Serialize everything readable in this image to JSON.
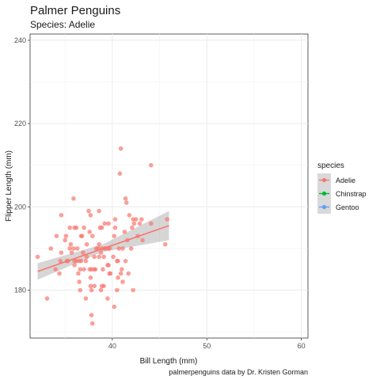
{
  "chart_data": {
    "type": "scatter",
    "title": "Palmer Penguins",
    "subtitle": "Species: Adelie",
    "xlabel": "Bill Length (mm)",
    "ylabel": "Flipper Length (mm)",
    "caption": "palmerpenguins data by Dr. Kristen Gorman",
    "xlim": [
      31.3,
      60.7
    ],
    "ylim": [
      168.5,
      241.5
    ],
    "x_ticks": [
      "40",
      "50",
      "60"
    ],
    "y_ticks": [
      "180",
      "200",
      "220",
      "240"
    ],
    "grid": true,
    "legend": {
      "title": "species",
      "placement": "right",
      "entries": [
        {
          "label": "Adelie",
          "color": "#F8766D"
        },
        {
          "label": "Chinstrap",
          "color": "#00BA38"
        },
        {
          "label": "Gentoo",
          "color": "#619CFF"
        }
      ]
    },
    "trend_line": {
      "x": [
        32.1,
        46.0
      ],
      "y": [
        184.5,
        195.5
      ],
      "band": [
        [
          32.1,
          182.5,
          186.5
        ],
        [
          39.0,
          189.2,
          191.0
        ],
        [
          46.0,
          192.0,
          199.0
        ]
      ]
    },
    "series": [
      {
        "name": "Adelie",
        "color": "#F8766D",
        "points": [
          [
            32.1,
            188
          ],
          [
            33.1,
            178
          ],
          [
            33.5,
            190
          ],
          [
            34.0,
            185
          ],
          [
            34.1,
            193
          ],
          [
            34.4,
            184
          ],
          [
            34.5,
            187
          ],
          [
            34.6,
            189
          ],
          [
            34.6,
            198
          ],
          [
            35.0,
            192
          ],
          [
            35.1,
            193
          ],
          [
            35.2,
            187
          ],
          [
            35.3,
            187
          ],
          [
            35.5,
            195
          ],
          [
            35.5,
            190
          ],
          [
            35.6,
            191
          ],
          [
            35.7,
            189
          ],
          [
            35.9,
            190
          ],
          [
            35.9,
            202
          ],
          [
            36.0,
            195
          ],
          [
            36.0,
            186
          ],
          [
            36.0,
            187
          ],
          [
            36.2,
            187
          ],
          [
            36.2,
            195
          ],
          [
            36.3,
            190
          ],
          [
            36.4,
            184
          ],
          [
            36.5,
            182
          ],
          [
            36.5,
            187
          ],
          [
            36.6,
            185
          ],
          [
            36.6,
            180
          ],
          [
            36.7,
            187
          ],
          [
            36.7,
            193
          ],
          [
            36.8,
            193
          ],
          [
            36.9,
            189
          ],
          [
            37.0,
            185
          ],
          [
            37.0,
            195
          ],
          [
            37.2,
            178
          ],
          [
            37.2,
            187
          ],
          [
            37.3,
            191
          ],
          [
            37.3,
            188
          ],
          [
            37.5,
            199
          ],
          [
            37.6,
            194
          ],
          [
            37.6,
            185
          ],
          [
            37.7,
            181
          ],
          [
            37.7,
            198
          ],
          [
            37.7,
            183
          ],
          [
            37.8,
            174
          ],
          [
            37.8,
            180
          ],
          [
            37.8,
            185
          ],
          [
            37.9,
            172
          ],
          [
            37.9,
            193
          ],
          [
            38.1,
            181
          ],
          [
            38.1,
            185
          ],
          [
            38.1,
            188
          ],
          [
            38.2,
            185
          ],
          [
            38.3,
            190
          ],
          [
            38.5,
            190
          ],
          [
            38.6,
            188
          ],
          [
            38.6,
            191
          ],
          [
            38.6,
            199
          ],
          [
            38.7,
            195
          ],
          [
            38.8,
            180
          ],
          [
            38.8,
            189
          ],
          [
            38.9,
            181
          ],
          [
            38.9,
            190
          ],
          [
            38.9,
            195
          ],
          [
            39.0,
            185
          ],
          [
            39.1,
            181
          ],
          [
            39.1,
            188
          ],
          [
            39.2,
            190
          ],
          [
            39.2,
            196
          ],
          [
            39.3,
            190
          ],
          [
            39.5,
            186
          ],
          [
            39.5,
            178
          ],
          [
            39.6,
            186
          ],
          [
            39.6,
            190
          ],
          [
            39.6,
            196
          ],
          [
            39.7,
            190
          ],
          [
            39.7,
            184
          ],
          [
            39.8,
            184
          ],
          [
            40.1,
            188
          ],
          [
            40.2,
            176
          ],
          [
            40.2,
            193
          ],
          [
            40.3,
            195
          ],
          [
            40.3,
            197
          ],
          [
            40.5,
            180
          ],
          [
            40.5,
            187
          ],
          [
            40.6,
            183
          ],
          [
            40.6,
            187
          ],
          [
            40.7,
            190
          ],
          [
            40.8,
            208
          ],
          [
            40.9,
            184
          ],
          [
            40.9,
            214
          ],
          [
            41.0,
            185
          ],
          [
            41.1,
            182
          ],
          [
            41.1,
            190
          ],
          [
            41.3,
            194
          ],
          [
            41.4,
            187
          ],
          [
            41.4,
            202
          ],
          [
            41.5,
            201
          ],
          [
            41.6,
            192
          ],
          [
            41.7,
            184
          ],
          [
            41.8,
            198
          ],
          [
            42.0,
            190
          ],
          [
            42.1,
            195
          ],
          [
            42.2,
            180
          ],
          [
            42.2,
            197
          ],
          [
            42.3,
            196
          ],
          [
            42.5,
            197
          ],
          [
            42.7,
            193
          ],
          [
            42.9,
            196
          ],
          [
            43.1,
            197
          ],
          [
            43.2,
            192
          ],
          [
            44.1,
            210
          ],
          [
            44.1,
            196
          ],
          [
            45.6,
            191
          ],
          [
            45.8,
            197
          ]
        ]
      }
    ]
  }
}
